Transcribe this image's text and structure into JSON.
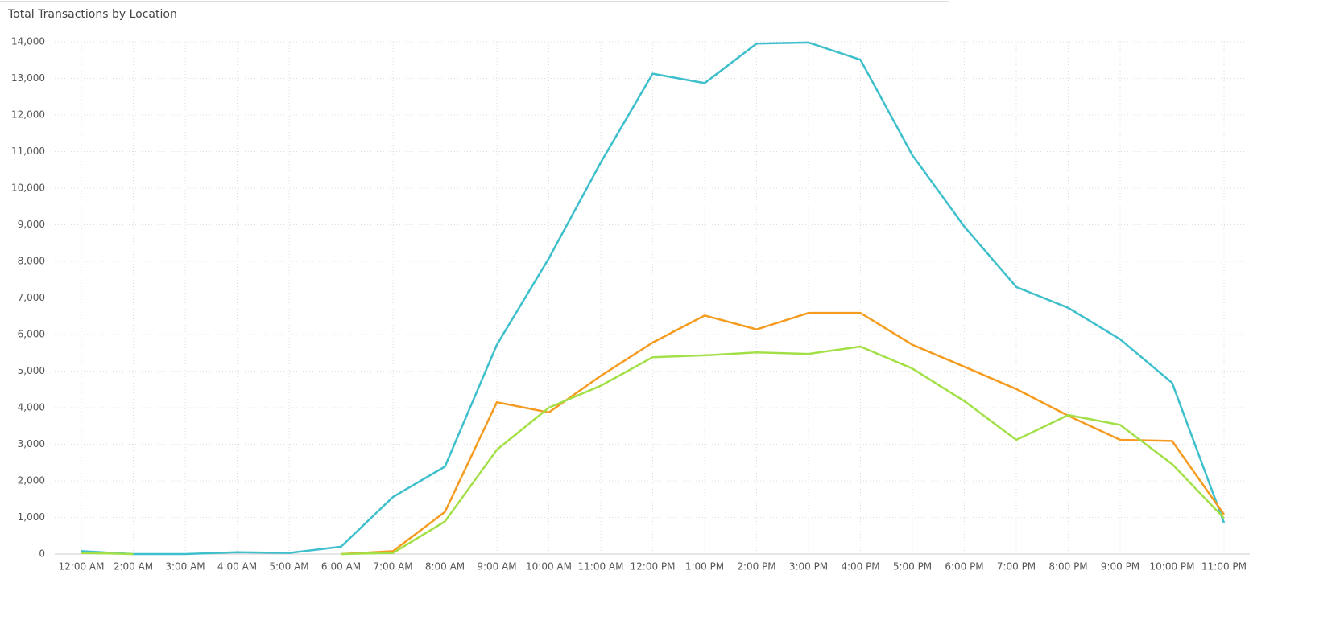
{
  "chart_data": {
    "type": "line",
    "title": "Total Transactions by Location",
    "categories": [
      "12:00 AM",
      "2:00 AM",
      "3:00 AM",
      "4:00 AM",
      "5:00 AM",
      "6:00 AM",
      "7:00 AM",
      "8:00 AM",
      "9:00 AM",
      "10:00 AM",
      "11:00 AM",
      "12:00 PM",
      "1:00 PM",
      "2:00 PM",
      "3:00 PM",
      "4:00 PM",
      "5:00 PM",
      "6:00 PM",
      "7:00 PM",
      "8:00 PM",
      "9:00 PM",
      "10:00 PM",
      "11:00 PM"
    ],
    "series": [
      {
        "color": "#3dbfcc",
        "values": [
          80,
          0,
          0,
          50,
          30,
          200,
          1560,
          2390,
          5720,
          8080,
          10700,
          13130,
          12870,
          13950,
          13980,
          13510,
          10900,
          8950,
          7300,
          6730,
          5870,
          4680,
          850
        ]
      },
      {
        "color": "#f59b1f",
        "values": [
          null,
          null,
          null,
          null,
          null,
          0,
          80,
          1150,
          4150,
          3870,
          4870,
          5780,
          6520,
          6140,
          6590,
          6590,
          5720,
          5120,
          4510,
          3780,
          3120,
          3090,
          1080
        ]
      },
      {
        "color": "#a3e048",
        "values": [
          30,
          0,
          null,
          null,
          null,
          0,
          30,
          890,
          2850,
          4000,
          4600,
          5380,
          5430,
          5510,
          5470,
          5670,
          5070,
          4180,
          3120,
          3800,
          3530,
          2460,
          980
        ]
      }
    ],
    "ylim": [
      0,
      14000
    ],
    "yticks": [
      0,
      {
        "value": 1000,
        "label": "1,000"
      },
      {
        "value": 2000,
        "label": "2,000"
      },
      {
        "value": 3000,
        "label": "3,000"
      },
      {
        "value": 4000,
        "label": "4,000"
      },
      {
        "value": 5000,
        "label": "5,000"
      },
      {
        "value": 6000,
        "label": "6,000"
      },
      {
        "value": 7000,
        "label": "7,000"
      },
      {
        "value": 8000,
        "label": "8,000"
      },
      {
        "value": 9000,
        "label": "9,000"
      },
      {
        "value": 10000,
        "label": "10,000"
      },
      {
        "value": 11000,
        "label": "11,000"
      },
      {
        "value": 12000,
        "label": "12,000"
      },
      {
        "value": 13000,
        "label": "13,000"
      },
      {
        "value": 14000,
        "label": "14,000"
      }
    ],
    "grid": true
  }
}
